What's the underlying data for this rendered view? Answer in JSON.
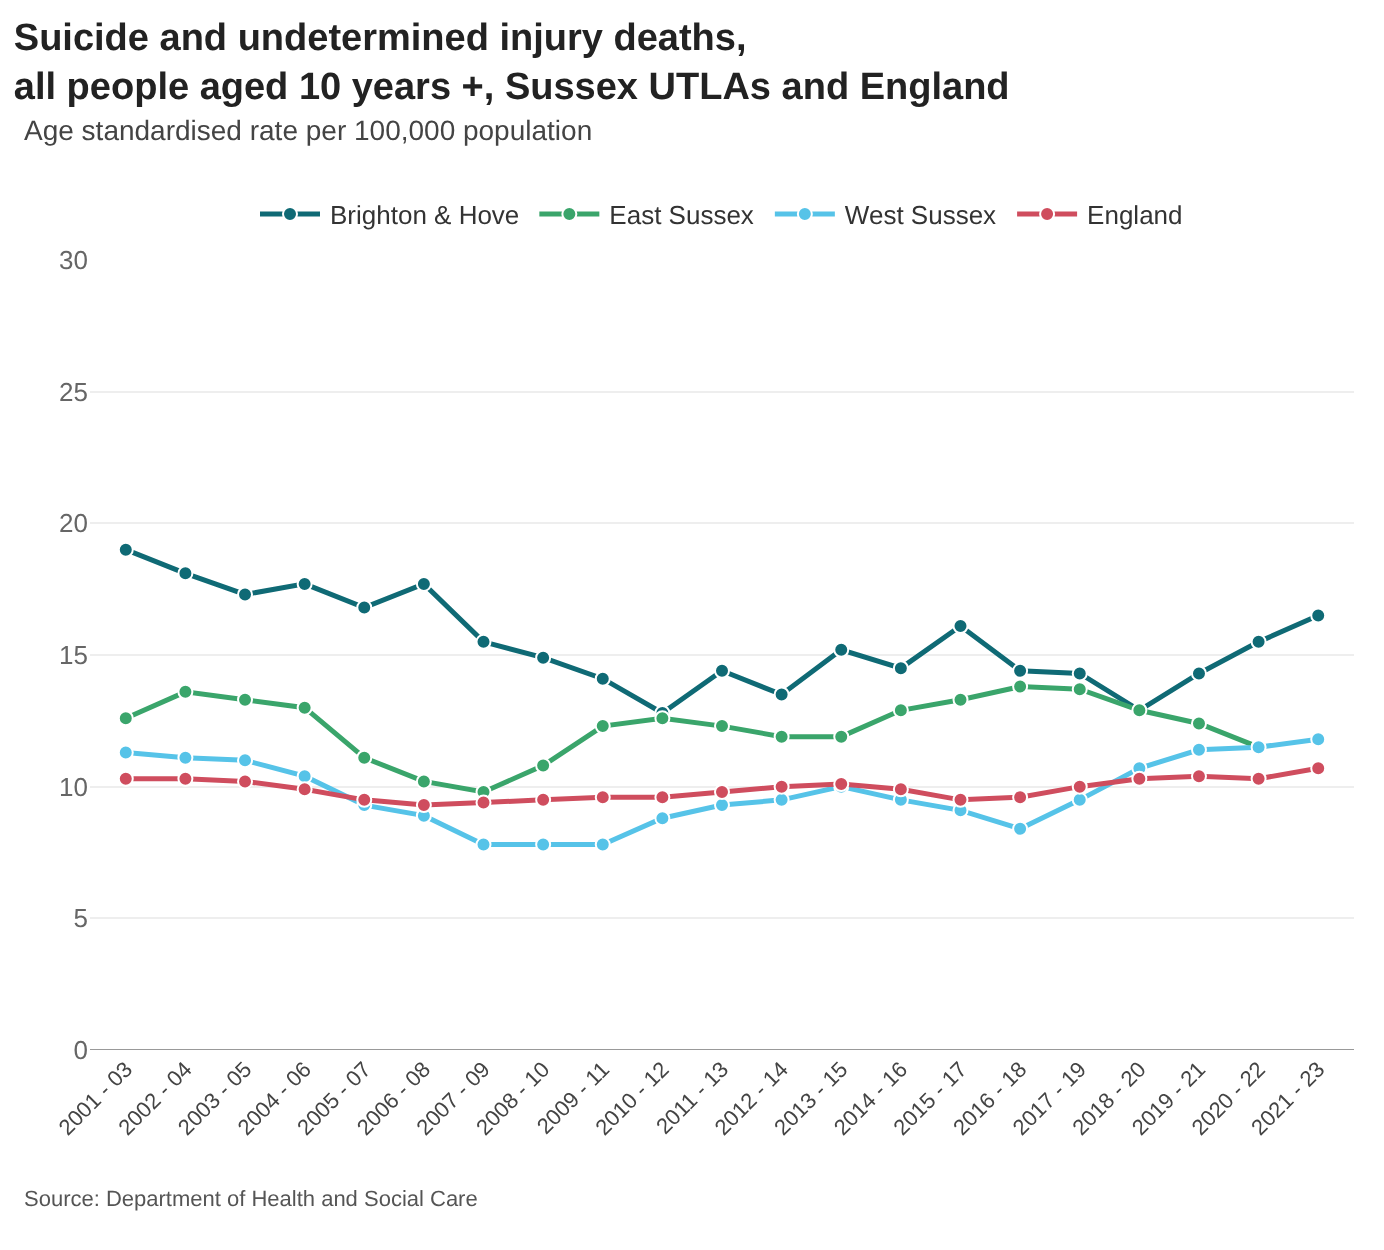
{
  "chart_data": {
    "type": "line",
    "title": "Suicide and undetermined injury deaths,\nall people aged 10 years +, Sussex UTLAs and England",
    "subtitle": "Age standardised rate per 100,000 population",
    "categories": [
      "2001 - 03",
      "2002 - 04",
      "2003 - 05",
      "2004 - 06",
      "2005 - 07",
      "2006 - 08",
      "2007 - 09",
      "2008 - 10",
      "2009 - 11",
      "2010 - 12",
      "2011 - 13",
      "2012 - 14",
      "2013 - 15",
      "2014 - 16",
      "2015 - 17",
      "2016 - 18",
      "2017 - 19",
      "2018 - 20",
      "2019 - 21",
      "2020 - 22",
      "2021 - 23"
    ],
    "series": [
      {
        "name": "Brighton & Hove",
        "color": "#0f6a75",
        "values": [
          19.0,
          18.1,
          17.3,
          17.7,
          16.8,
          17.7,
          15.5,
          14.9,
          14.1,
          12.8,
          14.4,
          13.5,
          15.2,
          14.5,
          16.1,
          14.4,
          14.3,
          12.9,
          14.3,
          15.5,
          16.5
        ]
      },
      {
        "name": "East Sussex",
        "color": "#3aa56b",
        "values": [
          12.6,
          13.6,
          13.3,
          13.0,
          11.1,
          10.2,
          9.8,
          10.8,
          12.3,
          12.6,
          12.3,
          11.9,
          11.9,
          12.9,
          13.3,
          13.8,
          13.7,
          12.9,
          12.4,
          11.5,
          null
        ]
      },
      {
        "name": "West Sussex",
        "color": "#56c3e8",
        "values": [
          11.3,
          11.1,
          11.0,
          10.4,
          9.3,
          8.9,
          7.8,
          7.8,
          7.8,
          8.8,
          9.3,
          9.5,
          10.0,
          9.5,
          9.1,
          8.4,
          9.5,
          10.7,
          11.4,
          11.5,
          11.8
        ]
      },
      {
        "name": "England",
        "color": "#cf4d5e",
        "values": [
          10.3,
          10.3,
          10.2,
          9.9,
          9.5,
          9.3,
          9.4,
          9.5,
          9.6,
          9.6,
          9.8,
          10.0,
          10.1,
          9.9,
          9.5,
          9.6,
          10.0,
          10.3,
          10.4,
          10.3,
          10.7
        ]
      }
    ],
    "ylim": [
      0,
      30
    ],
    "yticks": [
      0,
      5,
      10,
      15,
      20,
      25,
      30
    ],
    "grid": "y",
    "legend": "top",
    "marker": "circle",
    "line_style": "solid",
    "annotations": [
      "Source: Department of Health and Social Care"
    ]
  }
}
